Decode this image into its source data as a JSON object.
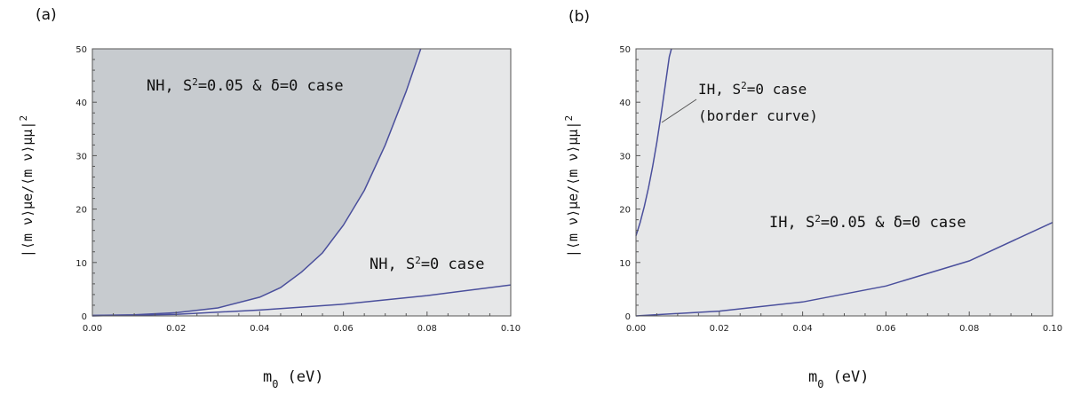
{
  "colors": {
    "light_region": "#e6e7e8",
    "dark_region": "#c7cbcf",
    "curve": "#4a4f9c",
    "frame": "#555555"
  },
  "chart_data": [
    {
      "type": "area",
      "panel_label": "(a)",
      "xlabel_main": "m",
      "xlabel_sub": "0",
      "xlabel_unit": "(eV)",
      "ylabel": "|⟨m ν⟩μe/⟨m ν⟩μμ|",
      "ylabel_sup": "2",
      "xlim": [
        0,
        0.1
      ],
      "ylim": [
        0,
        50
      ],
      "x_ticks": [
        "0.00",
        "0.02",
        "0.04",
        "0.06",
        "0.08",
        "0.10"
      ],
      "y_ticks": [
        "0",
        "10",
        "20",
        "30",
        "40",
        "50"
      ],
      "series": [
        {
          "x": [
            0,
            0.01,
            0.02,
            0.03,
            0.04,
            0.045,
            0.05,
            0.055,
            0.06,
            0.065,
            0.07,
            0.075,
            0.0785
          ],
          "y": [
            0.1,
            0.2,
            0.6,
            1.5,
            3.5,
            5.3,
            8.2,
            11.8,
            17,
            23.5,
            32,
            42,
            50
          ]
        },
        {
          "x": [
            0,
            0.02,
            0.04,
            0.06,
            0.08,
            0.1
          ],
          "y": [
            0,
            0.3,
            1.1,
            2.2,
            3.8,
            5.8
          ]
        }
      ],
      "annotations": [
        {
          "text": "NH, S",
          "sup": "2",
          "rest": "=0.05  &  δ=0 case"
        },
        {
          "text": "NH, S",
          "sup": "2",
          "rest": "=0 case"
        }
      ],
      "grid": false
    },
    {
      "type": "area",
      "panel_label": "(b)",
      "xlabel_main": "m",
      "xlabel_sub": "0",
      "xlabel_unit": "(eV)",
      "ylabel": "|⟨m ν⟩μe/⟨m ν⟩μμ|",
      "ylabel_sup": "2",
      "xlim": [
        0,
        0.1
      ],
      "ylim": [
        0,
        50
      ],
      "x_ticks": [
        "0.00",
        "0.02",
        "0.04",
        "0.06",
        "0.08",
        "0.10"
      ],
      "y_ticks": [
        "0",
        "10",
        "20",
        "30",
        "40",
        "50"
      ],
      "series": [
        {
          "x": [
            0,
            0.001,
            0.002,
            0.003,
            0.004,
            0.005,
            0.006,
            0.007,
            0.008,
            0.0085
          ],
          "y": [
            15,
            17.5,
            20.5,
            24,
            28,
            32.5,
            37.5,
            43,
            48.5,
            50
          ]
        },
        {
          "x": [
            0,
            0.02,
            0.04,
            0.06,
            0.08,
            0.1
          ],
          "y": [
            0,
            0.9,
            2.6,
            5.6,
            10.3,
            17.5
          ]
        }
      ],
      "annotations": [
        {
          "text": "IH, S",
          "sup": "2",
          "rest": "=0 case"
        },
        {
          "text": "(border curve)"
        },
        {
          "text": "IH, S",
          "sup": "2",
          "rest": "=0.05  &  δ=0 case"
        }
      ],
      "grid": false
    }
  ]
}
